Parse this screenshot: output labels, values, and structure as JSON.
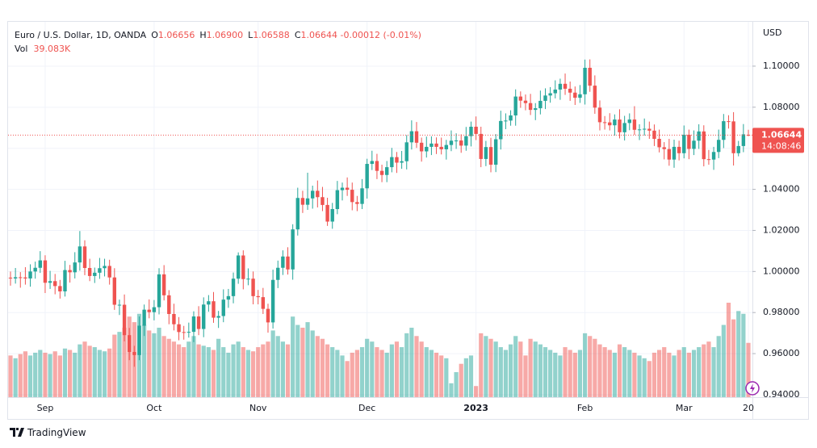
{
  "chart_data": {
    "type": "candlestick",
    "title": "Euro / U.S. Dollar, 1D, OANDA",
    "legend_fields": [
      {
        "key": "O",
        "label": "1.06656"
      },
      {
        "key": "H",
        "label": "1.06900"
      },
      {
        "key": "L",
        "label": "1.06588"
      },
      {
        "key": "C",
        "label": "1.06644"
      }
    ],
    "change_label": "-0.00012 (-0.01%)",
    "volume_title": "Vol",
    "volume_label": "39.083K",
    "currency": "USD",
    "last_price_label": "1.06644",
    "countdown": "14:08:46",
    "brand": "TradingView",
    "up_color": "#26a69a",
    "down_color": "#ef5350",
    "grid": true,
    "ylim": [
      0.9388,
      1.1216
    ],
    "yticks": [
      {
        "value": 0.94,
        "label": "0.94000"
      },
      {
        "value": 0.96,
        "label": "0.96000"
      },
      {
        "value": 0.98,
        "label": "0.98000"
      },
      {
        "value": 1.0,
        "label": "1.00000"
      },
      {
        "value": 1.02,
        "label": "1.02000"
      },
      {
        "value": 1.04,
        "label": "1.04000"
      },
      {
        "value": 1.06,
        "label": "1.06000"
      },
      {
        "value": 1.08,
        "label": "1.08000"
      },
      {
        "value": 1.1,
        "label": "1.10000"
      }
    ],
    "categories": [
      null,
      null,
      null,
      null,
      null,
      null,
      null,
      "Sep",
      null,
      null,
      null,
      null,
      null,
      null,
      null,
      null,
      null,
      null,
      null,
      null,
      null,
      null,
      null,
      null,
      null,
      null,
      null,
      null,
      null,
      "Oct",
      null,
      null,
      null,
      null,
      null,
      null,
      null,
      null,
      null,
      null,
      null,
      null,
      null,
      null,
      null,
      null,
      null,
      null,
      null,
      null,
      "Nov",
      null,
      null,
      null,
      null,
      null,
      null,
      null,
      null,
      null,
      null,
      null,
      null,
      null,
      null,
      null,
      null,
      null,
      null,
      null,
      null,
      null,
      "Dec",
      null,
      null,
      null,
      null,
      null,
      null,
      null,
      null,
      null,
      null,
      null,
      null,
      null,
      null,
      null,
      null,
      null,
      null,
      null,
      null,
      null,
      "2023",
      null,
      null,
      null,
      null,
      null,
      null,
      null,
      null,
      null,
      null,
      null,
      null,
      null,
      null,
      null,
      null,
      null,
      null,
      null,
      null,
      null,
      "Feb",
      null,
      null,
      null,
      null,
      null,
      null,
      null,
      null,
      null,
      null,
      null,
      null,
      null,
      null,
      null,
      null,
      null,
      null,
      null,
      "Mar",
      null,
      null,
      null,
      null,
      null,
      null,
      null,
      null,
      null,
      null,
      null,
      null,
      "20"
    ],
    "ohlc": [
      [
        0.997,
        1.0,
        0.9931,
        0.9966
      ],
      [
        0.9966,
        1.0017,
        0.9941,
        0.9972
      ],
      [
        0.9972,
        0.9997,
        0.9921,
        0.9971
      ],
      [
        0.9971,
        1.0021,
        0.9936,
        0.9966
      ],
      [
        0.9966,
        1.0035,
        0.9926,
        1.0
      ],
      [
        1.0,
        1.0048,
        0.9965,
        1.0018
      ],
      [
        1.0018,
        1.0099,
        0.9993,
        1.0054
      ],
      [
        1.0054,
        1.0079,
        0.9895,
        0.9945
      ],
      [
        0.9945,
        1.0003,
        0.9915,
        0.9953
      ],
      [
        0.9953,
        0.9988,
        0.9889,
        0.9929
      ],
      [
        0.9929,
        0.9959,
        0.9868,
        0.9903
      ],
      [
        0.9903,
        1.0052,
        0.9878,
        1.0007
      ],
      [
        1.0007,
        1.0032,
        0.9946,
        0.9996
      ],
      [
        0.9996,
        1.0094,
        0.9966,
        1.0044
      ],
      [
        1.0044,
        1.0197,
        1.0004,
        1.0122
      ],
      [
        1.0122,
        1.0152,
        0.9982,
        1.0017
      ],
      [
        1.0017,
        1.0062,
        0.9953,
        0.9978
      ],
      [
        0.9978,
        1.0019,
        0.9944,
        0.9994
      ],
      [
        0.9994,
        1.0066,
        0.9964,
        1.0016
      ],
      [
        1.0016,
        1.0062,
        0.9976,
        1.0027
      ],
      [
        1.0027,
        1.0057,
        0.9936,
        0.9971
      ],
      [
        0.9971,
        1.0016,
        0.9813,
        0.9838
      ],
      [
        0.9838,
        0.9863,
        0.9788,
        0.9838
      ],
      [
        0.9838,
        0.9888,
        0.966,
        0.969
      ],
      [
        0.969,
        0.9725,
        0.9568,
        0.9608
      ],
      [
        0.9608,
        0.9638,
        0.9536,
        0.9593
      ],
      [
        0.9593,
        0.9781,
        0.9568,
        0.9736
      ],
      [
        0.9736,
        0.9839,
        0.9686,
        0.9814
      ],
      [
        0.9814,
        0.9864,
        0.9772,
        0.9802
      ],
      [
        0.9802,
        0.9861,
        0.9762,
        0.9826
      ],
      [
        0.9826,
        1.0016,
        0.9791,
        0.9986
      ],
      [
        0.9986,
        1.0031,
        0.9859,
        0.9884
      ],
      [
        0.9884,
        0.9909,
        0.9743,
        0.9793
      ],
      [
        0.9793,
        0.9843,
        0.9713,
        0.9743
      ],
      [
        0.9743,
        0.9778,
        0.9665,
        0.9705
      ],
      [
        0.9705,
        0.9735,
        0.9668,
        0.9703
      ],
      [
        0.9703,
        0.9751,
        0.9678,
        0.9706
      ],
      [
        0.9706,
        0.9806,
        0.9656,
        0.9781
      ],
      [
        0.9781,
        0.9831,
        0.969,
        0.972
      ],
      [
        0.972,
        0.9874,
        0.968,
        0.9839
      ],
      [
        0.9839,
        0.9885,
        0.9804,
        0.9855
      ],
      [
        0.9855,
        0.99,
        0.975,
        0.9775
      ],
      [
        0.9775,
        0.9808,
        0.9725,
        0.9783
      ],
      [
        0.9783,
        0.9913,
        0.9753,
        0.9863
      ],
      [
        0.9863,
        0.9915,
        0.9823,
        0.988
      ],
      [
        0.988,
        0.9995,
        0.9845,
        0.9965
      ],
      [
        0.9965,
        1.0093,
        0.994,
        1.0078
      ],
      [
        1.0078,
        1.0103,
        0.9913,
        0.9963
      ],
      [
        0.9963,
        1.0015,
        0.9933,
        0.9965
      ],
      [
        0.9965,
        1.0,
        0.984,
        0.988
      ],
      [
        0.988,
        0.991,
        0.984,
        0.9875
      ],
      [
        0.9875,
        0.992,
        0.9793,
        0.9818
      ],
      [
        0.9818,
        0.9843,
        0.9702,
        0.9752
      ],
      [
        0.9752,
        1.0009,
        0.9722,
        0.9959
      ],
      [
        0.9959,
        1.0053,
        0.9919,
        1.0018
      ],
      [
        1.0018,
        1.0103,
        0.9983,
        1.0073
      ],
      [
        1.0073,
        1.0118,
        0.9985,
        1.001
      ],
      [
        1.001,
        1.023,
        0.996,
        1.0205
      ],
      [
        1.0205,
        1.0408,
        1.0175,
        1.0358
      ],
      [
        1.0358,
        1.0393,
        1.0285,
        1.0325
      ],
      [
        1.0325,
        1.0481,
        1.03,
        1.0356
      ],
      [
        1.0356,
        1.0418,
        1.0306,
        1.0393
      ],
      [
        1.0393,
        1.0443,
        1.0312,
        1.0362
      ],
      [
        1.0362,
        1.0412,
        1.0294,
        1.0324
      ],
      [
        1.0324,
        1.0359,
        1.0222,
        1.0243
      ],
      [
        1.0243,
        1.0334,
        1.0208,
        1.0304
      ],
      [
        1.0304,
        1.0441,
        1.0279,
        1.0396
      ],
      [
        1.0396,
        1.0433,
        1.0346,
        1.0408
      ],
      [
        1.0408,
        1.0458,
        1.0368,
        1.0398
      ],
      [
        1.0398,
        1.0433,
        1.0298,
        1.0338
      ],
      [
        1.0338,
        1.0368,
        1.0294,
        1.0329
      ],
      [
        1.0329,
        1.045,
        1.0304,
        1.0405
      ],
      [
        1.0405,
        1.0549,
        1.0355,
        1.0524
      ],
      [
        1.0524,
        1.0588,
        1.0494,
        1.0538
      ],
      [
        1.0538,
        1.0573,
        1.045,
        1.049
      ],
      [
        1.049,
        1.052,
        1.0435,
        1.047
      ],
      [
        1.047,
        1.0538,
        1.0435,
        1.0508
      ],
      [
        1.0508,
        1.0602,
        1.0483,
        1.0557
      ],
      [
        1.0557,
        1.0582,
        1.048,
        1.053
      ],
      [
        1.053,
        1.0587,
        1.05,
        1.0537
      ],
      [
        1.0537,
        1.0664,
        1.0497,
        1.0629
      ],
      [
        1.0629,
        1.0736,
        1.0594,
        1.0683
      ],
      [
        1.0683,
        1.0728,
        1.0602,
        1.0627
      ],
      [
        1.0627,
        1.0652,
        1.0535,
        1.0585
      ],
      [
        1.0585,
        1.0657,
        1.0555,
        1.0607
      ],
      [
        1.0607,
        1.0658,
        1.0567,
        1.0623
      ],
      [
        1.0623,
        1.0653,
        1.0572,
        1.0607
      ],
      [
        1.0607,
        1.0652,
        1.057,
        1.0595
      ],
      [
        1.0595,
        1.0641,
        1.0545,
        1.0616
      ],
      [
        1.0616,
        1.0687,
        1.0586,
        1.0637
      ],
      [
        1.0637,
        1.0673,
        1.0597,
        1.0638
      ],
      [
        1.0638,
        1.0668,
        1.0578,
        1.0613
      ],
      [
        1.0613,
        1.0704,
        1.0588,
        1.0659
      ],
      [
        1.0659,
        1.073,
        1.0609,
        1.0705
      ],
      [
        1.0705,
        1.0755,
        1.064,
        1.067
      ],
      [
        1.067,
        1.0705,
        1.0508,
        1.0548
      ],
      [
        1.0548,
        1.0636,
        1.0513,
        1.0606
      ],
      [
        1.0606,
        1.0651,
        1.0483,
        1.052
      ],
      [
        1.052,
        1.0669,
        1.0484,
        1.0644
      ],
      [
        1.0644,
        1.0783,
        1.0594,
        1.0733
      ],
      [
        1.0733,
        1.077,
        1.0693,
        1.0735
      ],
      [
        1.0735,
        1.0785,
        1.071,
        1.076
      ],
      [
        1.076,
        1.0887,
        1.071,
        1.0852
      ],
      [
        1.0852,
        1.0877,
        1.0797,
        1.0832
      ],
      [
        1.0832,
        1.0862,
        1.0785,
        1.082
      ],
      [
        1.082,
        1.0865,
        1.0762,
        1.0787
      ],
      [
        1.0787,
        1.082,
        1.0737,
        1.0795
      ],
      [
        1.0795,
        1.0881,
        1.0765,
        1.0831
      ],
      [
        1.0831,
        1.0892,
        1.0791,
        1.0857
      ],
      [
        1.0857,
        1.0898,
        1.0822,
        1.0868
      ],
      [
        1.0868,
        1.0931,
        1.0843,
        1.0886
      ],
      [
        1.0886,
        1.0939,
        1.0836,
        1.0914
      ],
      [
        1.0914,
        1.0964,
        1.086,
        1.089
      ],
      [
        1.089,
        1.0925,
        1.0831,
        1.0871
      ],
      [
        1.0871,
        1.0901,
        1.0811,
        1.0846
      ],
      [
        1.0846,
        1.0908,
        1.0821,
        1.0863
      ],
      [
        1.0863,
        1.1032,
        1.0813,
        1.0992
      ],
      [
        1.0992,
        1.1033,
        1.0875,
        1.0905
      ],
      [
        1.0905,
        1.0955,
        1.0768,
        1.0798
      ],
      [
        1.0798,
        1.0833,
        1.0687,
        1.0727
      ],
      [
        1.0727,
        1.0757,
        1.0691,
        1.0726
      ],
      [
        1.0726,
        1.0771,
        1.0687,
        1.0712
      ],
      [
        1.0712,
        1.0765,
        1.0662,
        1.074
      ],
      [
        1.074,
        1.079,
        1.0648,
        1.0678
      ],
      [
        1.0678,
        1.0758,
        1.0638,
        1.0723
      ],
      [
        1.0723,
        1.077,
        1.0688,
        1.074
      ],
      [
        1.074,
        1.0805,
        1.0665,
        1.069
      ],
      [
        1.069,
        1.0717,
        1.064,
        1.0692
      ],
      [
        1.0692,
        1.0745,
        1.0662,
        1.0695
      ],
      [
        1.0695,
        1.073,
        1.0646,
        1.0686
      ],
      [
        1.0686,
        1.0716,
        1.0611,
        1.0646
      ],
      [
        1.0646,
        1.0691,
        1.058,
        1.0605
      ],
      [
        1.0605,
        1.063,
        1.0546,
        1.0596
      ],
      [
        1.0596,
        1.0646,
        1.0515,
        1.0545
      ],
      [
        1.0545,
        1.0642,
        1.0505,
        1.0607
      ],
      [
        1.0607,
        1.0637,
        1.0541,
        1.0576
      ],
      [
        1.0576,
        1.0711,
        1.0551,
        1.0666
      ],
      [
        1.0666,
        1.0691,
        1.0547,
        1.0597
      ],
      [
        1.0597,
        1.0687,
        1.0567,
        1.0637
      ],
      [
        1.0637,
        1.0717,
        1.0597,
        1.0682
      ],
      [
        1.0682,
        1.0712,
        1.0512,
        1.0547
      ],
      [
        1.0547,
        1.0592,
        1.052,
        1.0545
      ],
      [
        1.0545,
        1.0607,
        1.0495,
        1.0582
      ],
      [
        1.0582,
        1.0691,
        1.0552,
        1.0641
      ],
      [
        1.0641,
        1.0767,
        1.0601,
        1.0732
      ],
      [
        1.0732,
        1.0761,
        1.0696,
        1.0731
      ],
      [
        1.0731,
        1.0776,
        1.0516,
        1.0576
      ],
      [
        1.0576,
        1.0636,
        1.0561,
        1.0611
      ],
      [
        1.0611,
        1.0718,
        1.0581,
        1.0668
      ],
      [
        1.06656,
        1.069,
        1.06588,
        1.06644
      ]
    ],
    "volume": [
      30000,
      28000,
      31000,
      33000,
      30000,
      32000,
      34000,
      32000,
      31000,
      33000,
      30000,
      35000,
      34000,
      32000,
      38000,
      40000,
      37000,
      36000,
      34000,
      33000,
      35000,
      45000,
      47000,
      50000,
      58000,
      54000,
      60000,
      52000,
      48000,
      46000,
      50000,
      44000,
      42000,
      40000,
      38000,
      36000,
      40000,
      44000,
      38000,
      37000,
      36000,
      34000,
      42000,
      36000,
      32000,
      38000,
      40000,
      36000,
      34000,
      33000,
      36000,
      38000,
      40000,
      48000,
      44000,
      40000,
      38000,
      58000,
      52000,
      50000,
      54000,
      48000,
      44000,
      42000,
      38000,
      36000,
      34000,
      30000,
      26000,
      32000,
      34000,
      36000,
      42000,
      40000,
      36000,
      34000,
      32000,
      38000,
      40000,
      36000,
      46000,
      50000,
      44000,
      40000,
      36000,
      34000,
      32000,
      30000,
      28000,
      10000,
      18000,
      24000,
      28000,
      30000,
      8000,
      46000,
      44000,
      42000,
      40000,
      36000,
      34000,
      38000,
      44000,
      40000,
      30000,
      42000,
      40000,
      38000,
      36000,
      34000,
      32000,
      30000,
      36000,
      34000,
      32000,
      34000,
      46000,
      44000,
      42000,
      38000,
      36000,
      34000,
      32000,
      38000,
      36000,
      34000,
      32000,
      30000,
      28000,
      26000,
      32000,
      34000,
      36000,
      32000,
      30000,
      34000,
      36000,
      32000,
      34000,
      36000,
      38000,
      40000,
      36000,
      44000,
      52000,
      68000,
      56000,
      62000,
      60000,
      39083
    ]
  }
}
